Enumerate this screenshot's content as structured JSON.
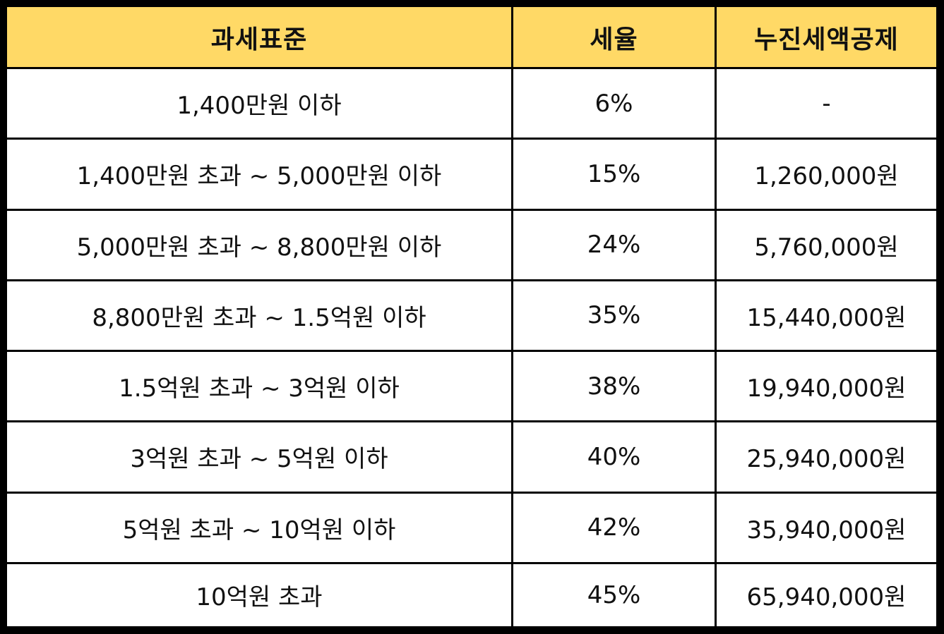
{
  "table": {
    "headers": [
      "과세표준",
      "세율",
      "누진세액공제"
    ],
    "rows": [
      [
        "1,400만원 이하",
        "6%",
        "-"
      ],
      [
        "1,400만원 초과 ~ 5,000만원 이하",
        "15%",
        "1,260,000원"
      ],
      [
        "5,000만원 초과 ~ 8,800만원 이하",
        "24%",
        "5,760,000원"
      ],
      [
        "8,800만원 초과 ~ 1.5억원 이하",
        "35%",
        "15,440,000원"
      ],
      [
        "1.5억원 초과 ~ 3억원 이하",
        "38%",
        "19,940,000원"
      ],
      [
        "3억원 초과 ~ 5억원 이하",
        "40%",
        "25,940,000원"
      ],
      [
        "5억원 초과 ~ 10억원 이하",
        "42%",
        "35,940,000원"
      ],
      [
        "10억원 초과",
        "45%",
        "65,940,000원"
      ]
    ]
  },
  "colors": {
    "header_background": "#FFD966",
    "cell_background": "#FFFFFF",
    "border": "#000000"
  }
}
